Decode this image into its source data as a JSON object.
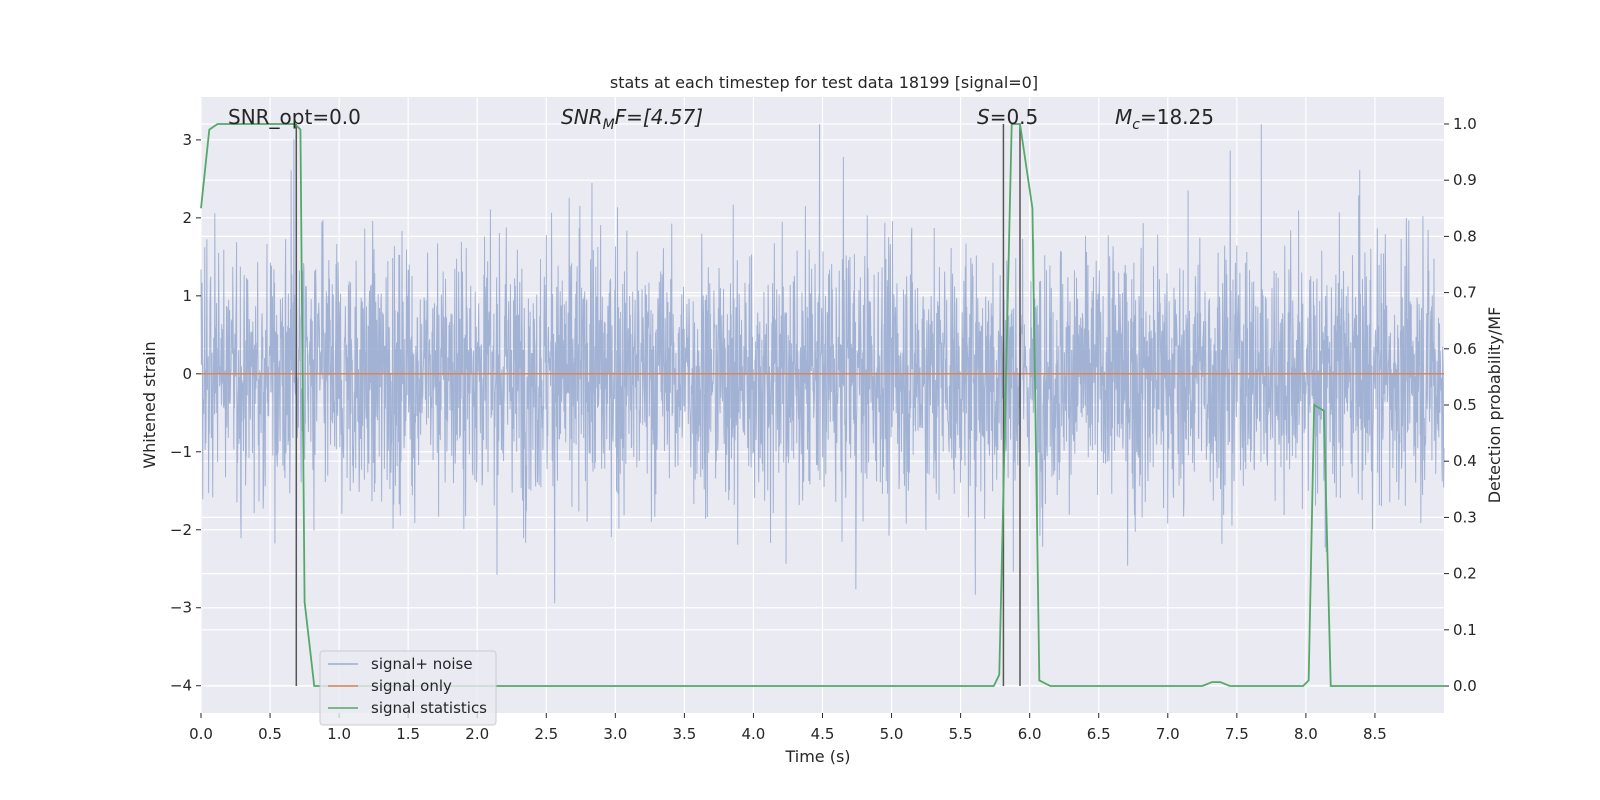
{
  "chart_data": {
    "type": "line",
    "title": "stats at each timestep for test data 18199 [signal=0]",
    "xlabel": "Time (s)",
    "ylabel": "Whitened strain",
    "y2label": "Detection probability/MF",
    "xlim": [
      0.0,
      9.0
    ],
    "ylim": [
      -4.35,
      3.55
    ],
    "y2lim": [
      -0.048,
      1.048
    ],
    "grid": true,
    "legend_position": "lower-left",
    "x_ticks": [
      "0.0",
      "0.5",
      "1.0",
      "1.5",
      "2.0",
      "2.5",
      "3.0",
      "3.5",
      "4.0",
      "4.5",
      "5.0",
      "5.5",
      "6.0",
      "6.5",
      "7.0",
      "7.5",
      "8.0",
      "8.5"
    ],
    "y_ticks": [
      "−4",
      "−3",
      "−2",
      "−1",
      "0",
      "1",
      "2",
      "3"
    ],
    "y2_ticks": [
      "0.0",
      "0.1",
      "0.2",
      "0.3",
      "0.4",
      "0.5",
      "0.6",
      "0.7",
      "0.8",
      "0.9",
      "1.0"
    ],
    "annotations": {
      "snr_opt": "SNR_opt=0.0",
      "snr_mf_label": "SNR",
      "snr_mf_sub": "M",
      "snr_mf_rest": "F=[4.57]",
      "s_label": "S",
      "s_value": "=0.5",
      "mc_label": "M",
      "mc_sub": "c",
      "mc_value": "=18.25"
    },
    "series": [
      {
        "name": "signal+ noise",
        "color": "#9aacd0",
        "note": "dense whitened noise trace, dt ~ 1/2048 s, values roughly within [-4, 3.2]",
        "amplitude_envelope": [
          -4.0,
          3.2
        ]
      },
      {
        "name": "signal only",
        "color": "#dd8452",
        "x": [
          0.0,
          9.0
        ],
        "y": [
          0.0,
          0.0
        ]
      },
      {
        "name": "signal statistics",
        "color": "#55a868",
        "axis": "right",
        "x": [
          0.0,
          0.06,
          0.12,
          0.68,
          0.72,
          0.75,
          0.82,
          5.74,
          5.78,
          5.87,
          5.93,
          6.02,
          6.07,
          6.15,
          7.25,
          7.32,
          7.38,
          7.45,
          7.98,
          8.02,
          8.06,
          8.13,
          8.18,
          9.0
        ],
        "y": [
          0.85,
          0.99,
          1.0,
          1.0,
          0.99,
          0.15,
          0.0,
          0.0,
          0.02,
          1.0,
          1.0,
          0.85,
          0.01,
          0.0,
          0.0,
          0.007,
          0.007,
          0.0,
          0.0,
          0.01,
          0.5,
          0.49,
          0.0,
          0.0
        ]
      }
    ],
    "vertical_markers": [
      0.69,
      5.81,
      5.93
    ]
  }
}
